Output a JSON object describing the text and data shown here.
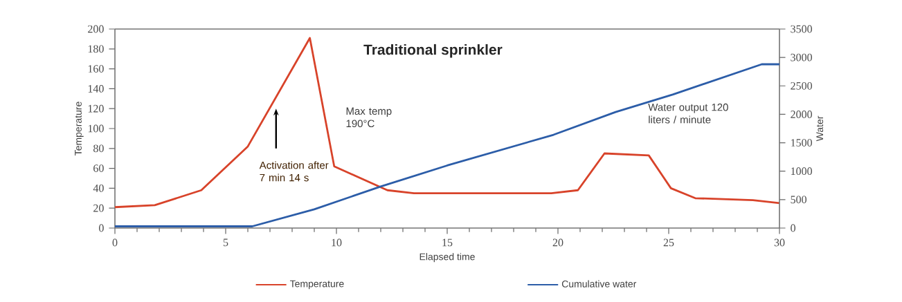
{
  "chart_data": {
    "type": "line",
    "title": "Traditional sprinkler",
    "xlabel": "Elapsed time",
    "ylabel": "Temperature",
    "y2label": "Water",
    "series": [
      {
        "name": "Temperature",
        "color": "#d8432a",
        "x": [
          0,
          1.8,
          3.9,
          6,
          8.8,
          9.9,
          12.3,
          13.5,
          19.7,
          20.9,
          22.1,
          24.1,
          25.1,
          26.2,
          28.8,
          30
        ],
        "values": [
          21,
          23,
          38,
          82,
          191,
          62,
          38,
          35,
          35,
          38,
          75,
          73,
          40,
          30,
          28,
          25
        ]
      },
      {
        "name": "Cumulative water",
        "color": "#2c5da8",
        "axis": "y2",
        "x": [
          0,
          6.2,
          9,
          12,
          15,
          19.8,
          22.6,
          25.2,
          29.2,
          30
        ],
        "values": [
          30,
          30,
          330,
          730,
          1100,
          1640,
          2040,
          2350,
          2880,
          2880
        ]
      }
    ],
    "xlim": [
      0,
      30
    ],
    "xticks": [
      0,
      5,
      10,
      15,
      20,
      25,
      30
    ],
    "ylim": [
      0,
      200
    ],
    "yticks": [
      0,
      20,
      40,
      60,
      80,
      100,
      120,
      140,
      160,
      180,
      200
    ],
    "y2lim": [
      0,
      3500
    ],
    "y2ticks": [
      0,
      500,
      1000,
      1500,
      2000,
      2500,
      3000,
      3500
    ],
    "annotations": [
      "Max temp 190°C",
      "Activation after 7 min 14 s",
      "Water output 120 liters / minute"
    ],
    "legend": "bottom",
    "grid": false,
    "marker": "none",
    "line_style": "solid"
  }
}
